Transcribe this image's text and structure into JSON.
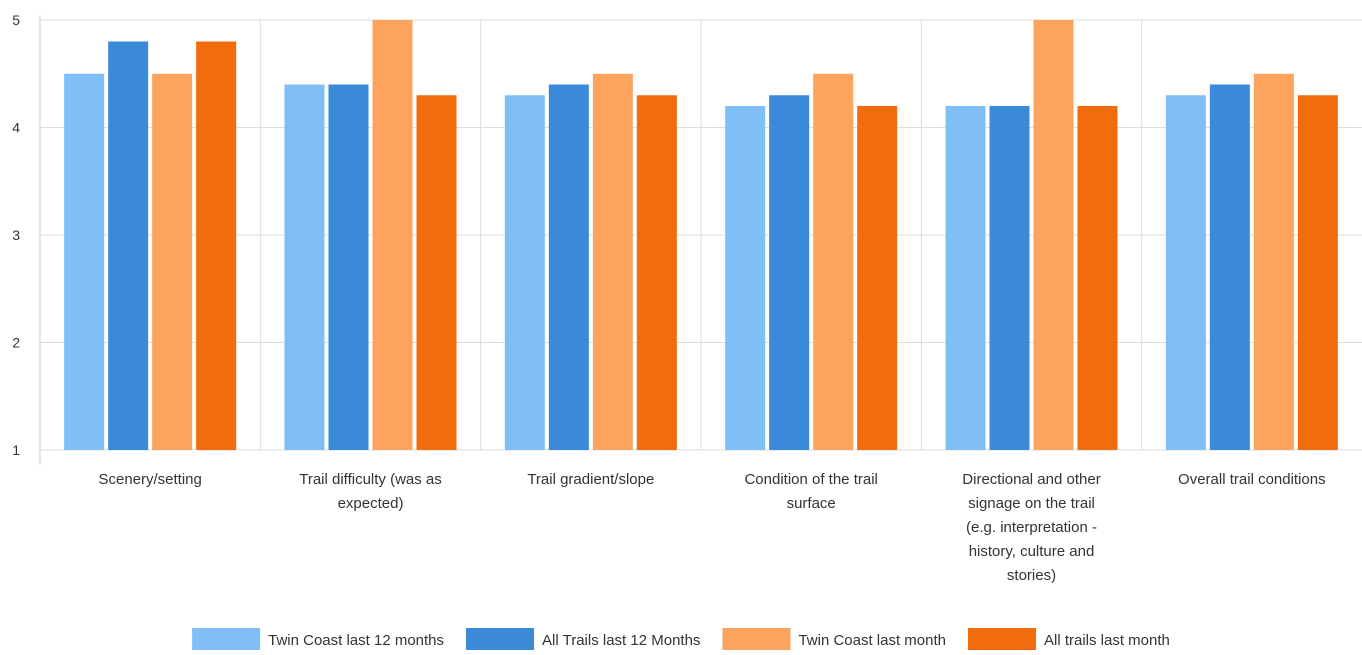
{
  "chart_data": {
    "type": "bar",
    "title": "",
    "xlabel": "",
    "ylabel": "",
    "ylim": [
      1,
      5
    ],
    "yticks": [
      1,
      2,
      3,
      4,
      5
    ],
    "grid": true,
    "legend_position": "bottom",
    "categories": [
      [
        "Scenery/setting"
      ],
      [
        "Trail difficulty (was as",
        "expected)"
      ],
      [
        "Trail gradient/slope"
      ],
      [
        "Condition of the trail",
        "surface"
      ],
      [
        "Directional and other",
        "signage on the trail",
        "(e.g. interpretation -",
        "history, culture and",
        "stories)"
      ],
      [
        "Overall trail conditions"
      ]
    ],
    "series": [
      {
        "name": "Twin Coast last 12 months",
        "color": "#7fbff5",
        "values": [
          4.5,
          4.4,
          4.3,
          4.2,
          4.2,
          4.3
        ]
      },
      {
        "name": "All Trails last 12 Months",
        "color": "#3b8ad9",
        "values": [
          4.8,
          4.4,
          4.4,
          4.3,
          4.2,
          4.4
        ]
      },
      {
        "name": "Twin Coast last month",
        "color": "#fca35d",
        "values": [
          4.5,
          5.0,
          4.5,
          4.5,
          5.0,
          4.5
        ]
      },
      {
        "name": "All trails last month",
        "color": "#f06c0c",
        "values": [
          4.8,
          4.3,
          4.3,
          4.2,
          4.2,
          4.3
        ]
      }
    ]
  }
}
